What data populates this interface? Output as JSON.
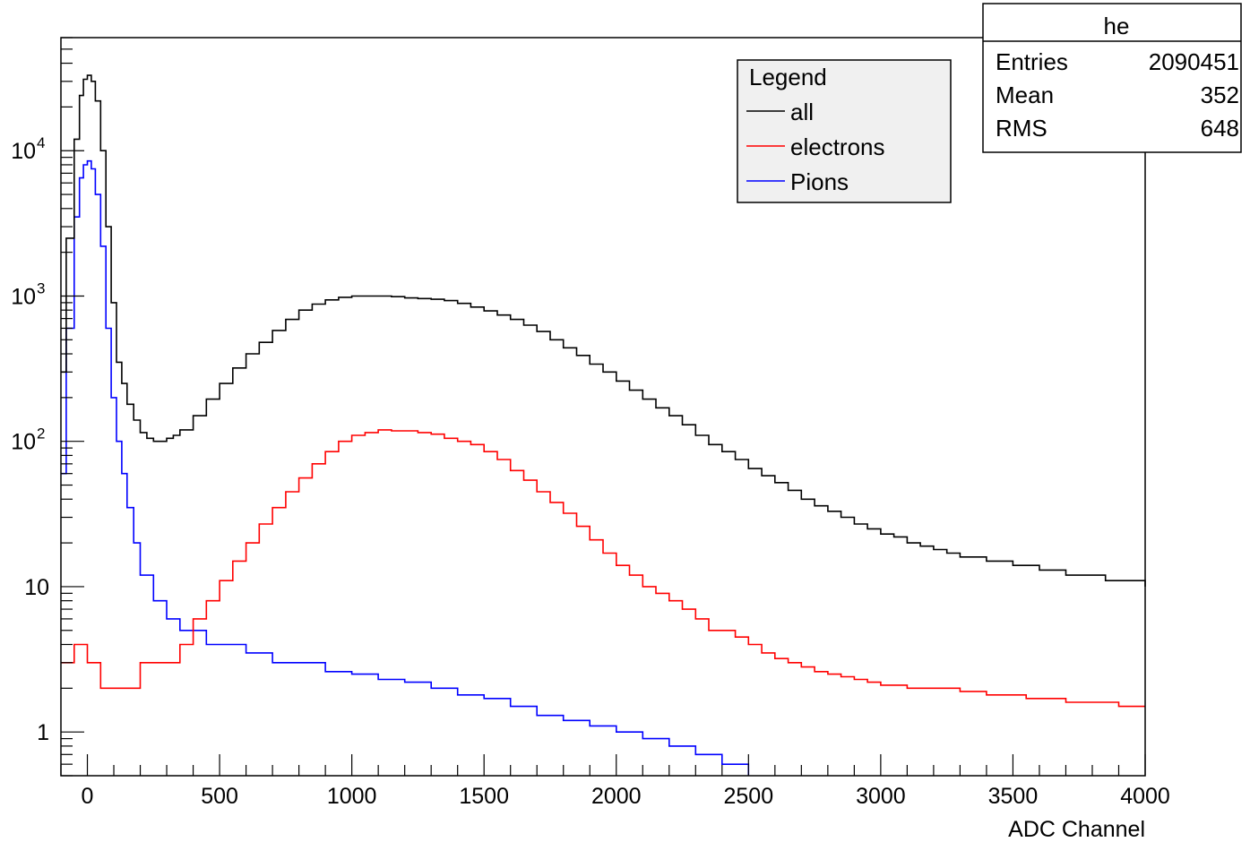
{
  "chart_data": {
    "type": "line",
    "title": "",
    "xlabel": "ADC Channel",
    "ylabel": "",
    "x_range": [
      -100,
      4000
    ],
    "y_range": [
      0.5,
      60000
    ],
    "y_scale": "log",
    "grid": false,
    "x_ticks": [
      {
        "value": 0,
        "label": "0"
      },
      {
        "value": 500,
        "label": "500"
      },
      {
        "value": 1000,
        "label": "1000"
      },
      {
        "value": 1500,
        "label": "1500"
      },
      {
        "value": 2000,
        "label": "2000"
      },
      {
        "value": 2500,
        "label": "2500"
      },
      {
        "value": 3000,
        "label": "3000"
      },
      {
        "value": 3500,
        "label": "3500"
      },
      {
        "value": 4000,
        "label": "4000"
      }
    ],
    "y_ticks": [
      {
        "value": 1,
        "label": "1"
      },
      {
        "value": 10,
        "label": "10"
      },
      {
        "value": 100,
        "label": "10",
        "sup": "2"
      },
      {
        "value": 1000,
        "label": "10",
        "sup": "3"
      },
      {
        "value": 10000,
        "label": "10",
        "sup": "4"
      }
    ],
    "legend": {
      "title": "Legend",
      "placement": "top-right",
      "entries": [
        {
          "name": "all",
          "color": "#000000"
        },
        {
          "name": "electrons",
          "color": "#ff0000"
        },
        {
          "name": "Pions",
          "color": "#0000ff"
        }
      ]
    },
    "stats_box": {
      "title": "he",
      "rows": [
        {
          "label": "Entries",
          "value": "2090451"
        },
        {
          "label": "Mean",
          "value": "352"
        },
        {
          "label": "RMS",
          "value": "648"
        }
      ]
    },
    "series": [
      {
        "name": "all",
        "color": "#000000",
        "x": [
          -100,
          -80,
          -50,
          -30,
          -15,
          0,
          15,
          30,
          50,
          70,
          90,
          110,
          130,
          150,
          175,
          200,
          225,
          250,
          275,
          300,
          325,
          350,
          400,
          450,
          500,
          550,
          600,
          650,
          700,
          750,
          800,
          850,
          900,
          950,
          1000,
          1050,
          1100,
          1150,
          1200,
          1250,
          1300,
          1350,
          1400,
          1450,
          1500,
          1550,
          1600,
          1650,
          1700,
          1750,
          1800,
          1850,
          1900,
          1950,
          2000,
          2050,
          2100,
          2150,
          2200,
          2250,
          2300,
          2350,
          2400,
          2450,
          2500,
          2550,
          2600,
          2650,
          2700,
          2750,
          2800,
          2850,
          2900,
          2950,
          3000,
          3050,
          3100,
          3150,
          3200,
          3250,
          3300,
          3350,
          3400,
          3450,
          3500,
          3550,
          3600,
          3650,
          3700,
          3750,
          3800,
          3850,
          3900,
          3950,
          4000
        ],
        "y": [
          300,
          2500,
          12000,
          24000,
          31000,
          33000,
          30000,
          22000,
          10000,
          3000,
          900,
          350,
          250,
          180,
          140,
          115,
          105,
          100,
          100,
          105,
          110,
          120,
          150,
          195,
          250,
          320,
          400,
          480,
          580,
          690,
          800,
          880,
          940,
          980,
          1000,
          1000,
          1000,
          990,
          970,
          960,
          950,
          930,
          890,
          840,
          790,
          740,
          690,
          630,
          570,
          500,
          440,
          390,
          340,
          300,
          260,
          225,
          195,
          170,
          150,
          130,
          110,
          95,
          85,
          75,
          65,
          58,
          52,
          46,
          40,
          36,
          33,
          30,
          27,
          25,
          23,
          22,
          20,
          19,
          18,
          17,
          16,
          16,
          15,
          15,
          14,
          14,
          13,
          13,
          12,
          12,
          12,
          11,
          11,
          11,
          10
        ]
      },
      {
        "name": "electrons",
        "color": "#ff0000",
        "x": [
          -100,
          -50,
          0,
          50,
          100,
          150,
          200,
          250,
          300,
          350,
          400,
          450,
          500,
          550,
          600,
          650,
          700,
          750,
          800,
          850,
          900,
          950,
          1000,
          1050,
          1100,
          1150,
          1200,
          1250,
          1300,
          1350,
          1400,
          1450,
          1500,
          1550,
          1600,
          1650,
          1700,
          1750,
          1800,
          1850,
          1900,
          1950,
          2000,
          2050,
          2100,
          2150,
          2200,
          2250,
          2300,
          2350,
          2400,
          2450,
          2500,
          2550,
          2600,
          2650,
          2700,
          2750,
          2800,
          2850,
          2900,
          2950,
          3000,
          3050,
          3100,
          3150,
          3200,
          3250,
          3300,
          3350,
          3400,
          3450,
          3500,
          3550,
          3600,
          3650,
          3700,
          3750,
          3800,
          3850,
          3900,
          3950,
          4000
        ],
        "y": [
          3,
          4,
          3,
          2,
          2,
          2,
          3,
          3,
          3,
          4,
          6,
          8,
          11,
          15,
          20,
          27,
          35,
          45,
          56,
          70,
          85,
          100,
          110,
          115,
          120,
          118,
          118,
          115,
          112,
          105,
          100,
          95,
          85,
          75,
          63,
          54,
          45,
          38,
          32,
          26,
          21,
          17,
          14,
          12,
          10,
          9,
          8,
          7,
          6,
          5,
          5,
          4.5,
          4,
          3.5,
          3.2,
          3,
          2.8,
          2.6,
          2.5,
          2.4,
          2.3,
          2.2,
          2.1,
          2.1,
          2,
          2,
          2,
          2,
          1.9,
          1.9,
          1.8,
          1.8,
          1.8,
          1.7,
          1.7,
          1.7,
          1.6,
          1.6,
          1.6,
          1.6,
          1.5,
          1.5,
          1.5
        ]
      },
      {
        "name": "Pions",
        "color": "#0000ff",
        "x": [
          -100,
          -80,
          -50,
          -30,
          -15,
          0,
          15,
          30,
          50,
          70,
          90,
          110,
          130,
          150,
          175,
          200,
          250,
          300,
          350,
          400,
          450,
          500,
          600,
          700,
          800,
          900,
          1000,
          1100,
          1200,
          1300,
          1400,
          1500,
          1600,
          1700,
          1800,
          1900,
          2000,
          2100,
          2200,
          2300,
          2400,
          2500
        ],
        "y": [
          60,
          600,
          3500,
          6500,
          8000,
          8500,
          7500,
          5000,
          2200,
          600,
          200,
          100,
          60,
          35,
          20,
          12,
          8,
          6,
          5,
          5,
          4,
          4,
          3.5,
          3,
          3,
          2.6,
          2.5,
          2.3,
          2.2,
          2,
          1.8,
          1.7,
          1.5,
          1.3,
          1.2,
          1.1,
          1,
          0.9,
          0.8,
          0.7,
          0.6,
          0.5
        ]
      }
    ]
  }
}
